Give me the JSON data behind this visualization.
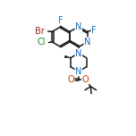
{
  "bg_color": "#ffffff",
  "bond_color": "#1a1a1a",
  "bond_lw": 1.1,
  "atom_colors": {
    "N": "#1a6abf",
    "O": "#cc3300",
    "Br": "#992222",
    "Cl": "#228822",
    "F": "#1a6abf",
    "C": "#1a1a1a"
  },
  "font_size": 7.0
}
